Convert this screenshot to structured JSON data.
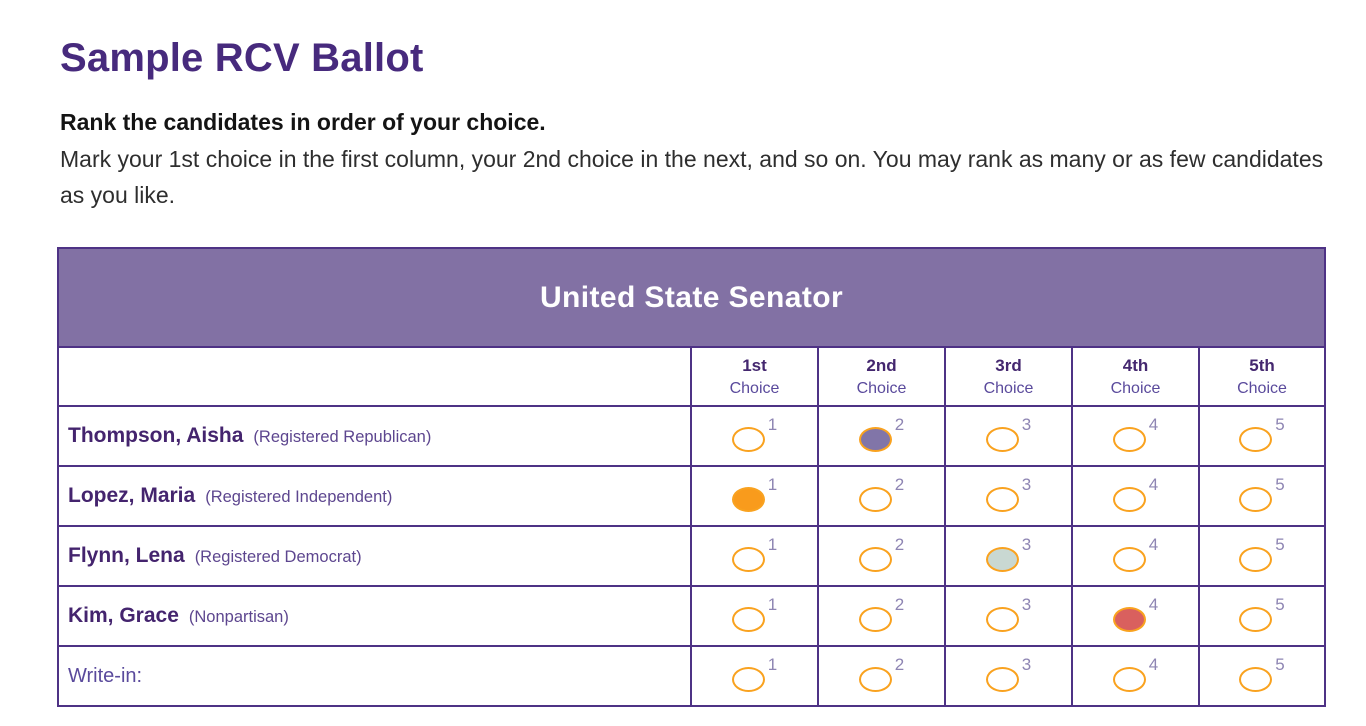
{
  "page": {
    "title": "Sample RCV Ballot",
    "instructions_bold": "Rank the candidates in order of your choice.",
    "instructions_body": "Mark your 1st choice in the first column, your 2nd choice in the next, and so on. You may rank as many or as few candidates as you like."
  },
  "ballot": {
    "contest_title": "United State Senator",
    "choice_columns": [
      {
        "rank": "1st",
        "label": "Choice"
      },
      {
        "rank": "2nd",
        "label": "Choice"
      },
      {
        "rank": "3rd",
        "label": "Choice"
      },
      {
        "rank": "4th",
        "label": "Choice"
      },
      {
        "rank": "5th",
        "label": "Choice"
      }
    ],
    "oval_numbers": [
      "1",
      "2",
      "3",
      "4",
      "5"
    ],
    "rows": [
      {
        "name": "Thompson, Aisha",
        "party": "(Registered Republican)",
        "filled_rank": 2,
        "fill_color": "#8175a8"
      },
      {
        "name": "Lopez, Maria",
        "party": "(Registered Independent)",
        "filled_rank": 1,
        "fill_color": "#f99b1c"
      },
      {
        "name": "Flynn, Lena",
        "party": "(Registered Democrat)",
        "filled_rank": 3,
        "fill_color": "#c9d8d2"
      },
      {
        "name": "Kim, Grace",
        "party": "(Nonpartisan)",
        "filled_rank": 4,
        "fill_color": "#d9605e"
      },
      {
        "name": "Write-in:",
        "party": "",
        "filled_rank": null,
        "fill_color": null
      }
    ],
    "colors": {
      "band_background": "#8271a4",
      "table_border": "#4e3285",
      "oval_outline": "#f9a21f",
      "title_purple": "#472a7d"
    }
  }
}
